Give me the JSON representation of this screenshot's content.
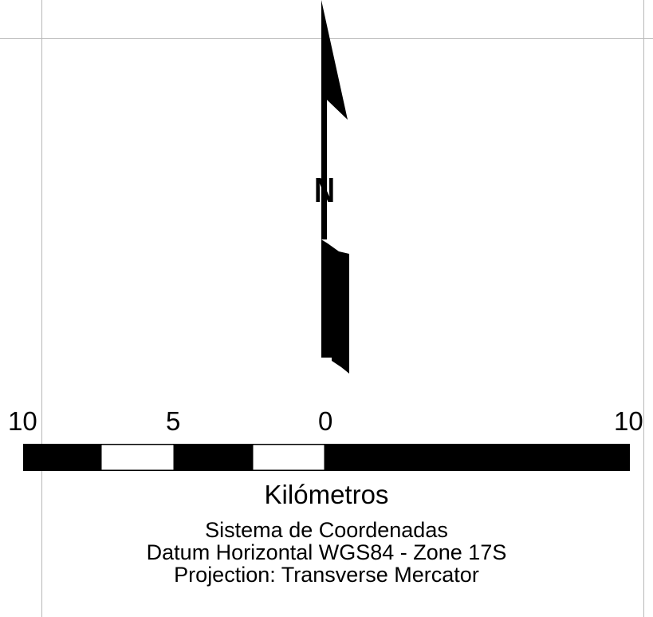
{
  "north_arrow": {
    "label": "N"
  },
  "scale_bar": {
    "tick_labels": [
      "10",
      "5",
      "0",
      "10"
    ],
    "units": "Kilómetros",
    "fill_color": "#000000",
    "alt_color": "#ffffff"
  },
  "coordinate_info": {
    "title": "Sistema de Coordenadas",
    "datum": "Datum Horizontal WGS84 - Zone 17S",
    "projection": "Projection: Transverse Mercator"
  }
}
